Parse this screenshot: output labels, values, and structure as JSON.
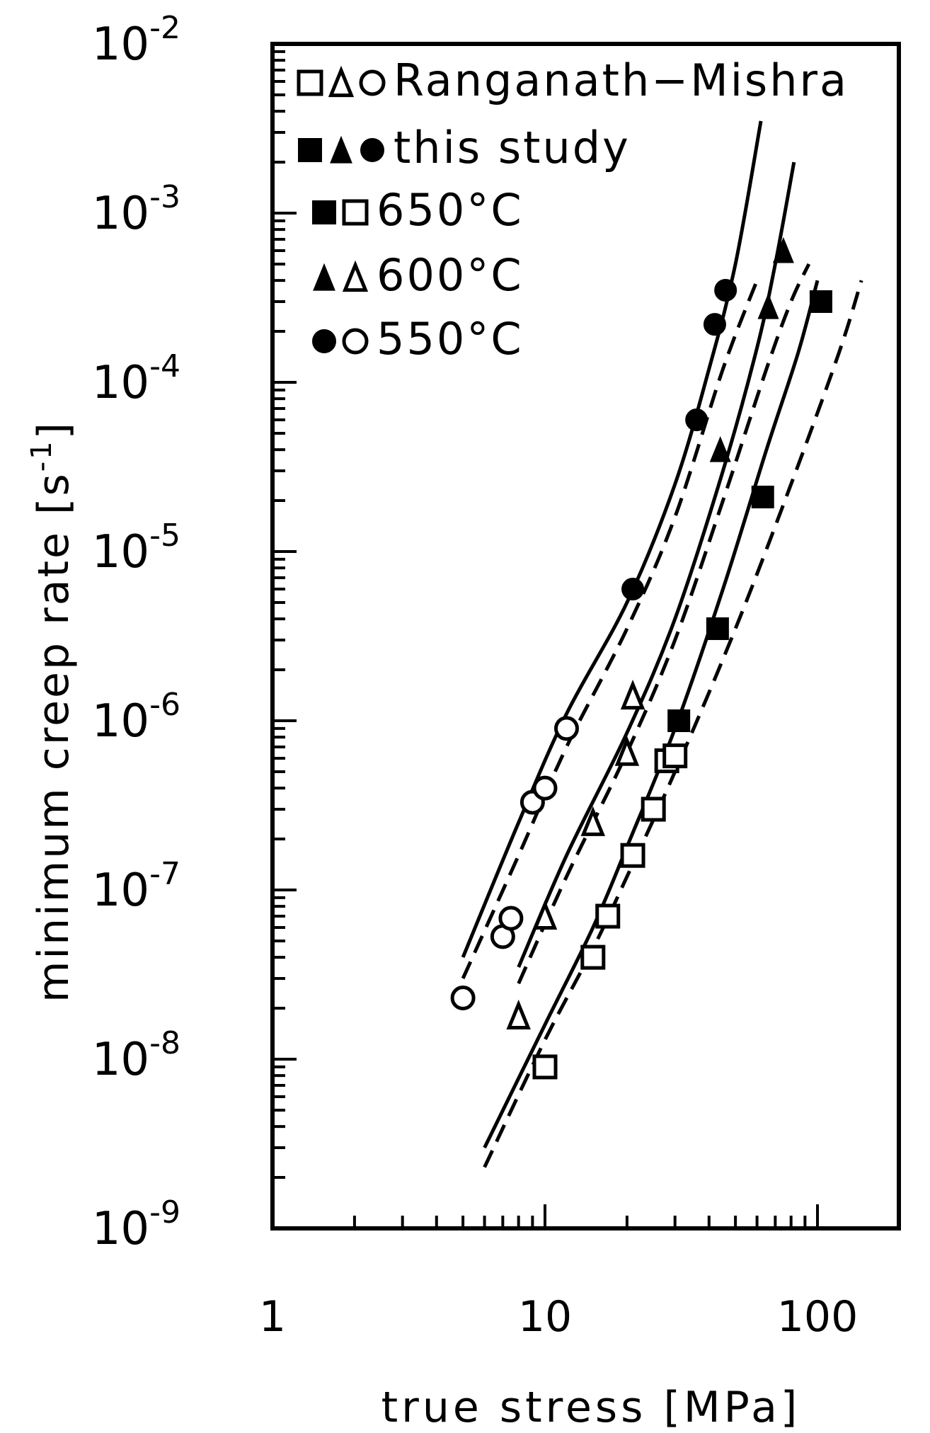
{
  "chart_data": {
    "type": "scatter",
    "title": "",
    "xlabel": "true stress [MPa]",
    "ylabel_main": "minimum creep rate [s",
    "ylabel_sup": "-1",
    "ylabel_close": "]",
    "x_scale": "log",
    "y_scale": "log",
    "xlim": [
      1,
      300
    ],
    "ylim": [
      1e-09,
      0.01
    ],
    "grid": false,
    "x_ticks": [
      {
        "value": 1,
        "label": "1"
      },
      {
        "value": 10,
        "label": "10"
      },
      {
        "value": 100,
        "label": "100"
      }
    ],
    "y_ticks": [
      {
        "value": 1e-09,
        "base": "10",
        "exp": "-9"
      },
      {
        "value": 1e-08,
        "base": "10",
        "exp": "-8"
      },
      {
        "value": 1e-07,
        "base": "10",
        "exp": "-7"
      },
      {
        "value": 1e-06,
        "base": "10",
        "exp": "-6"
      },
      {
        "value": 1e-05,
        "base": "10",
        "exp": "-5"
      },
      {
        "value": 0.0001,
        "base": "10",
        "exp": "-4"
      },
      {
        "value": 0.001,
        "base": "10",
        "exp": "-3"
      },
      {
        "value": 0.01,
        "base": "10",
        "exp": "-2"
      }
    ],
    "legend_position": "top-left",
    "legend": [
      {
        "markers": [
          "square-open",
          "triangle-open",
          "circle-open"
        ],
        "label": "Ranganath−Mishra"
      },
      {
        "markers": [
          "square-filled",
          "triangle-filled",
          "circle-filled"
        ],
        "label": "this study"
      },
      {
        "markers": [
          "square-filled",
          "square-open"
        ],
        "label": "650°C"
      },
      {
        "markers": [
          "triangle-filled",
          "triangle-open"
        ],
        "label": "600°C"
      },
      {
        "markers": [
          "circle-filled",
          "circle-open"
        ],
        "label": "550°C"
      }
    ],
    "series": [
      {
        "source": "this study",
        "temp": "650°C",
        "marker": "square-filled",
        "points": [
          [
            31,
            1e-06
          ],
          [
            43,
            3.5e-06
          ],
          [
            63,
            2.1e-05
          ],
          [
            103,
            0.0003
          ]
        ]
      },
      {
        "source": "this study",
        "temp": "600°C",
        "marker": "triangle-filled",
        "points": [
          [
            44,
            4e-05
          ],
          [
            66,
            0.00028
          ],
          [
            75,
            0.0006
          ]
        ]
      },
      {
        "source": "this study",
        "temp": "550°C",
        "marker": "circle-filled",
        "points": [
          [
            21,
            6e-06
          ],
          [
            36,
            6e-05
          ],
          [
            42,
            0.00022
          ],
          [
            46,
            0.00035
          ]
        ]
      },
      {
        "source": "Ranganath-Mishra",
        "temp": "650°C",
        "marker": "square-open",
        "points": [
          [
            10,
            9e-09
          ],
          [
            15,
            4e-08
          ],
          [
            17,
            7e-08
          ],
          [
            21,
            1.6e-07
          ],
          [
            25,
            3e-07
          ],
          [
            28,
            5.8e-07
          ],
          [
            30,
            6.2e-07
          ]
        ]
      },
      {
        "source": "Ranganath-Mishra",
        "temp": "600°C",
        "marker": "triangle-open",
        "points": [
          [
            8,
            1.8e-08
          ],
          [
            10,
            7e-08
          ],
          [
            15,
            2.5e-07
          ],
          [
            20,
            6.5e-07
          ],
          [
            21,
            1.4e-06
          ]
        ]
      },
      {
        "source": "Ranganath-Mishra",
        "temp": "550°C",
        "marker": "circle-open",
        "points": [
          [
            5,
            2.3e-08
          ],
          [
            7,
            5.3e-08
          ],
          [
            7.5,
            6.8e-08
          ],
          [
            9,
            3.3e-07
          ],
          [
            10,
            4e-07
          ],
          [
            12,
            9e-07
          ]
        ]
      }
    ],
    "fit_curves": [
      {
        "source": "this study",
        "temp": "550°C",
        "style": "solid",
        "points": [
          [
            5,
            4e-08
          ],
          [
            8,
            2.5e-07
          ],
          [
            12,
            1.1e-06
          ],
          [
            20,
            5e-06
          ],
          [
            30,
            2.5e-05
          ],
          [
            40,
            0.00012
          ],
          [
            50,
            0.0005
          ],
          [
            62,
            0.0035
          ]
        ]
      },
      {
        "source": "this study",
        "temp": "600°C",
        "style": "solid",
        "points": [
          [
            8,
            3.5e-08
          ],
          [
            12,
            1.6e-07
          ],
          [
            20,
            8.5e-07
          ],
          [
            30,
            4e-06
          ],
          [
            45,
            3e-05
          ],
          [
            60,
            0.00016
          ],
          [
            70,
            0.0005
          ],
          [
            82,
            0.002
          ]
        ]
      },
      {
        "source": "this study",
        "temp": "650°C",
        "style": "solid",
        "points": [
          [
            6,
            3e-09
          ],
          [
            10,
            1.6e-08
          ],
          [
            15,
            6e-08
          ],
          [
            20,
            1.8e-07
          ],
          [
            30,
            9e-07
          ],
          [
            45,
            6e-06
          ],
          [
            65,
            4e-05
          ],
          [
            85,
            0.00015
          ],
          [
            100,
            0.0004
          ]
        ]
      },
      {
        "source": "Ranganath-Mishra",
        "temp": "550°C",
        "style": "dashed",
        "points": [
          [
            5,
            3e-08
          ],
          [
            8,
            1.6e-07
          ],
          [
            12,
            7e-07
          ],
          [
            20,
            3.5e-06
          ],
          [
            30,
            1.6e-05
          ],
          [
            45,
            0.00012
          ],
          [
            60,
            0.0004
          ]
        ]
      },
      {
        "source": "Ranganath-Mishra",
        "temp": "600°C",
        "style": "dashed",
        "points": [
          [
            8,
            2.8e-08
          ],
          [
            12,
            1.2e-07
          ],
          [
            20,
            6.5e-07
          ],
          [
            30,
            3e-06
          ],
          [
            45,
            2e-05
          ],
          [
            65,
            0.00012
          ],
          [
            80,
            0.0003
          ],
          [
            93,
            0.0005
          ]
        ]
      },
      {
        "source": "Ranganath-Mishra",
        "temp": "650°C",
        "style": "dashed",
        "points": [
          [
            6,
            2.3e-09
          ],
          [
            10,
            1.3e-08
          ],
          [
            15,
            4.5e-08
          ],
          [
            20,
            1.2e-07
          ],
          [
            30,
            5e-07
          ],
          [
            50,
            3.5e-06
          ],
          [
            80,
            2.5e-05
          ],
          [
            120,
            0.00015
          ],
          [
            145,
            0.0004
          ]
        ]
      }
    ]
  }
}
